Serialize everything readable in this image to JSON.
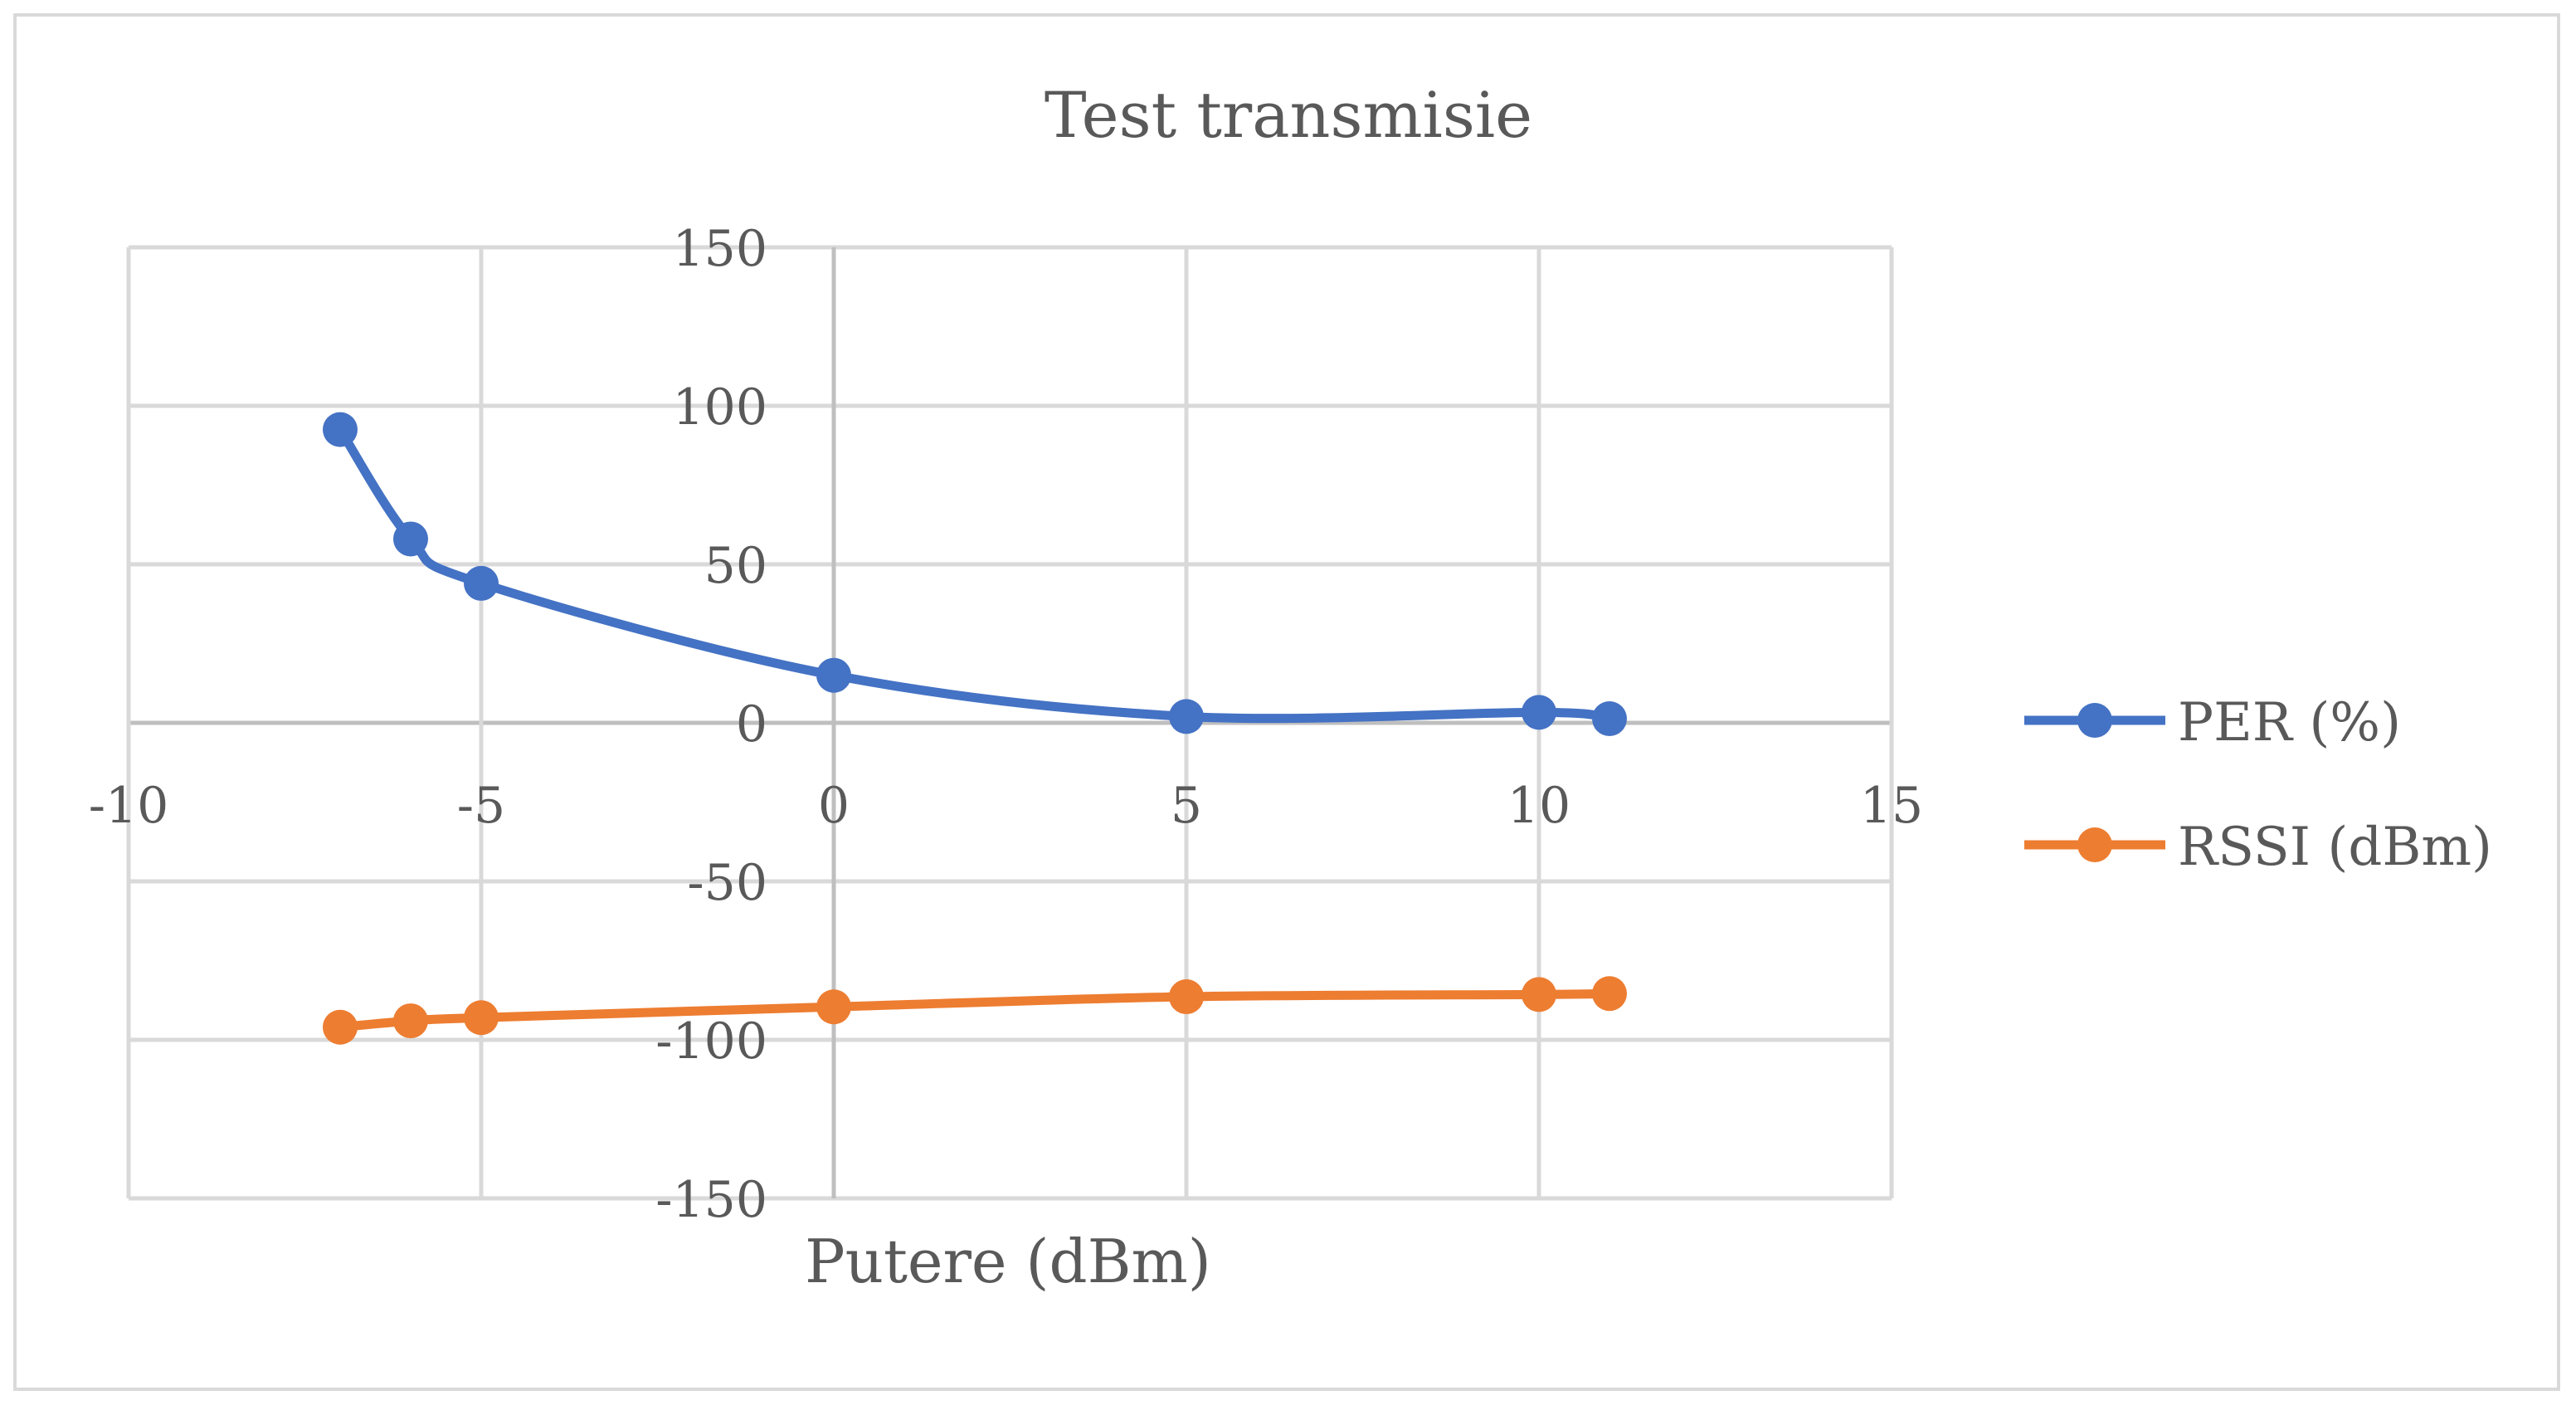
{
  "chart_data": {
    "type": "line",
    "title": "Test transmisie",
    "xlabel": "Putere (dBm)",
    "ylabel": "",
    "xlim": [
      -10,
      15
    ],
    "ylim": [
      -150,
      150
    ],
    "xticks": [
      -10,
      -5,
      0,
      5,
      10,
      15
    ],
    "yticks": [
      -150,
      -100,
      -50,
      0,
      50,
      100,
      150
    ],
    "grid": true,
    "smooth": true,
    "legend_position": "right",
    "series": [
      {
        "name": "PER (%)",
        "color": "#4472c4",
        "x": [
          -7,
          -6,
          -5,
          0,
          5,
          10,
          11
        ],
        "y": [
          92.5,
          58,
          44,
          15,
          2,
          3.3,
          1.3
        ]
      },
      {
        "name": "RSSI (dBm)",
        "color": "#ed7d31",
        "x": [
          -7,
          -6,
          -5,
          0,
          5,
          10,
          11
        ],
        "y": [
          -96,
          -94,
          -93,
          -89.6,
          -86.4,
          -85.7,
          -85.4
        ]
      }
    ]
  }
}
